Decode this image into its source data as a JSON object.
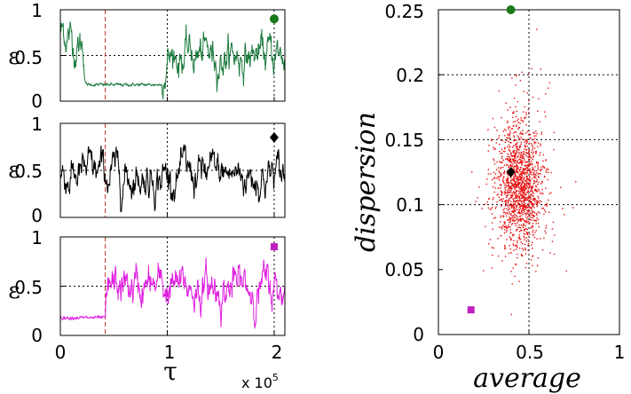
{
  "chart_data": [
    {
      "type": "line",
      "name": "top-panel",
      "ylabel": "ε",
      "xlim": [
        0,
        210000
      ],
      "ylim": [
        0,
        1
      ],
      "yticks": [
        "0",
        "0.5",
        "1"
      ],
      "dashed_marker_x": 42000,
      "dotted_grid_x": [
        100000,
        200000
      ],
      "dotted_grid_y": [
        0.5
      ],
      "series_color": "#1a7a3c",
      "marker": {
        "shape": "circle",
        "x": 200000,
        "y": 0.9,
        "color": "#1a7a1a"
      },
      "levels": [
        {
          "x": [
            0,
            8000
          ],
          "y": 0.75
        },
        {
          "x": [
            8000,
            22000
          ],
          "y": 0.62
        },
        {
          "x": [
            22000,
            95000
          ],
          "y": 0.18
        },
        {
          "x": [
            95000,
            210000
          ],
          "y": 0.5
        }
      ]
    },
    {
      "type": "line",
      "name": "middle-panel",
      "ylabel": "ε",
      "xlim": [
        0,
        210000
      ],
      "ylim": [
        0,
        1
      ],
      "yticks": [
        "0",
        "0.5",
        "1"
      ],
      "dashed_marker_x": 42000,
      "dotted_grid_x": [
        100000,
        200000
      ],
      "dotted_grid_y": [
        0.5
      ],
      "series_color": "#000000",
      "marker": {
        "shape": "diamond",
        "x": 200000,
        "y": 0.85,
        "color": "#000000"
      },
      "levels": [
        {
          "x": [
            0,
            210000
          ],
          "y": 0.45
        }
      ]
    },
    {
      "type": "line",
      "name": "bottom-panel",
      "ylabel": "ε",
      "xlabel": "τ",
      "xlim": [
        0,
        210000
      ],
      "ylim": [
        0,
        1
      ],
      "yticks": [
        "0",
        "0.5",
        "1"
      ],
      "xticks": [
        "0",
        "1",
        "2"
      ],
      "x_multiplier": "x 10",
      "x_multiplier_exp": "5",
      "dashed_marker_x": 42000,
      "dotted_grid_x": [
        100000,
        200000
      ],
      "dotted_grid_y": [
        0.5
      ],
      "series_color": "#e01ee0",
      "marker": {
        "shape": "square",
        "x": 200000,
        "y": 0.9,
        "color": "#c020c0"
      },
      "levels": [
        {
          "x": [
            0,
            42000
          ],
          "y": 0.18
        },
        {
          "x": [
            42000,
            210000
          ],
          "y": 0.48
        }
      ]
    },
    {
      "type": "scatter",
      "name": "dispersion-vs-average",
      "xlabel": "average",
      "ylabel": "dispersion",
      "xlim": [
        0,
        1
      ],
      "ylim": [
        0,
        0.25
      ],
      "xticks": [
        "0",
        "0.5",
        "1"
      ],
      "yticks": [
        "0",
        "0.05",
        "0.1",
        "0.15",
        "0.2",
        "0.25"
      ],
      "dotted_grid_x": [
        0.5
      ],
      "dotted_grid_y": [
        0.1,
        0.15,
        0.2
      ],
      "cloud": {
        "color": "#e81010",
        "count": 1500,
        "center_x": 0.45,
        "center_y": 0.11,
        "sd_x": 0.06,
        "sd_y": 0.022
      },
      "markers": [
        {
          "shape": "circle",
          "x": 0.4,
          "y": 0.25,
          "color": "#1a7a1a"
        },
        {
          "shape": "diamond",
          "x": 0.4,
          "y": 0.125,
          "color": "#000000"
        },
        {
          "shape": "square",
          "x": 0.18,
          "y": 0.019,
          "color": "#c020c0"
        }
      ]
    }
  ]
}
